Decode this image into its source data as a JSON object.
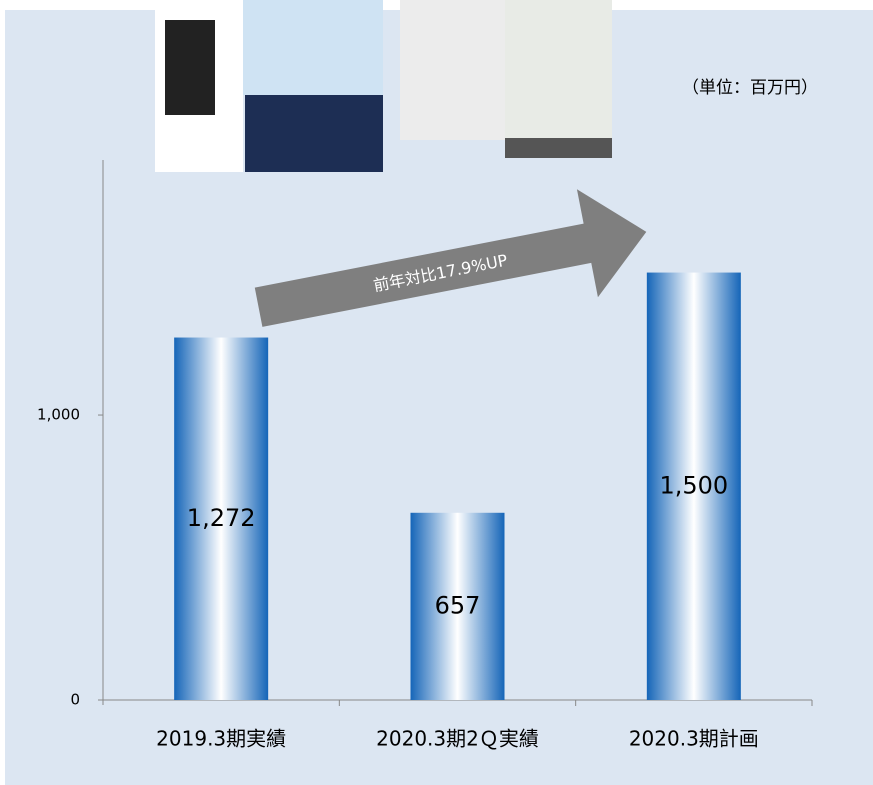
{
  "chart_data": {
    "type": "bar",
    "unit_label": "（単位：百万円）",
    "annotation": "前年対比17.9%UP",
    "categories": [
      "2019.3期実績",
      "2020.3期2Ｑ実績",
      "2020.3期計画"
    ],
    "values": [
      1272,
      657,
      1500
    ],
    "value_labels": [
      "1,272",
      "657",
      "1,500"
    ],
    "color": "#1a6cc0",
    "ylim": [
      0,
      1895
    ],
    "yticks": [
      0,
      {
        "value": 1000,
        "label": "1,000"
      }
    ],
    "grid": false
  }
}
